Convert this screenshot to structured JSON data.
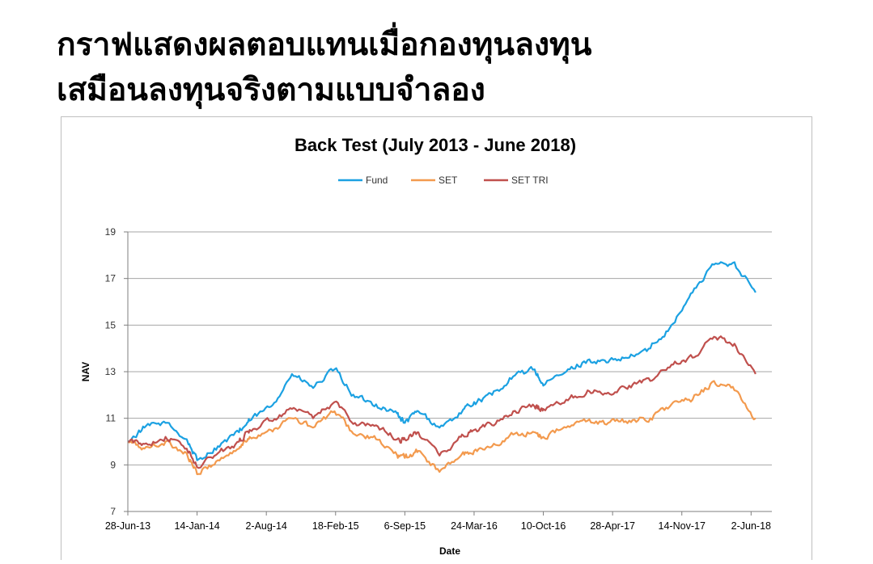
{
  "slide": {
    "title_line1": "กราฟแสดงผลตอบแทนเมื่อกองทุนลงทุน",
    "title_line2": "เสมือนลงทุนจริงตามแบบจำลอง"
  },
  "chart_data": {
    "type": "line",
    "title": "Back Test (July 2013 - June 2018)",
    "xlabel": "Date",
    "ylabel": "NAV",
    "ylim": [
      7,
      19
    ],
    "yticks": [
      7,
      9,
      11,
      13,
      15,
      17,
      19
    ],
    "xticks": [
      "28-Jun-13",
      "14-Jan-14",
      "2-Aug-14",
      "18-Feb-15",
      "6-Sep-15",
      "24-Mar-16",
      "10-Oct-16",
      "28-Apr-17",
      "14-Nov-17",
      "2-Jun-18"
    ],
    "grid": true,
    "legend": "top",
    "x": [
      "2013-06-28",
      "2013-08-15",
      "2013-10-15",
      "2013-12-15",
      "2014-01-14",
      "2014-03-15",
      "2014-05-15",
      "2014-06-15",
      "2014-08-15",
      "2014-10-15",
      "2014-12-15",
      "2015-02-15",
      "2015-04-15",
      "2015-06-15",
      "2015-08-15",
      "2015-09-06",
      "2015-10-15",
      "2015-12-15",
      "2016-02-15",
      "2016-03-24",
      "2016-05-15",
      "2016-07-15",
      "2016-09-15",
      "2016-10-10",
      "2016-12-15",
      "2017-02-15",
      "2017-04-15",
      "2017-06-15",
      "2017-08-15",
      "2017-10-15",
      "2017-12-15",
      "2018-02-15",
      "2018-04-15",
      "2018-06-15"
    ],
    "series": [
      {
        "name": "Fund",
        "color": "#1ba1e2",
        "values": [
          10.0,
          10.6,
          10.8,
          10.1,
          9.2,
          9.8,
          10.4,
          10.9,
          11.5,
          12.9,
          12.3,
          13.1,
          11.9,
          11.6,
          11.2,
          10.8,
          11.3,
          10.6,
          11.2,
          11.7,
          12.0,
          12.8,
          13.1,
          12.4,
          13.0,
          13.5,
          13.4,
          13.6,
          14.0,
          15.0,
          16.4,
          17.6,
          17.7,
          16.4
        ]
      },
      {
        "name": "SET",
        "color": "#f39a4e",
        "values": [
          10.0,
          9.7,
          10.0,
          9.5,
          8.6,
          9.2,
          9.7,
          10.2,
          10.5,
          11.0,
          10.6,
          11.3,
          10.3,
          10.1,
          9.4,
          9.3,
          9.6,
          8.7,
          9.4,
          9.6,
          9.8,
          10.3,
          10.4,
          10.2,
          10.6,
          10.9,
          10.8,
          10.9,
          11.0,
          11.6,
          11.8,
          12.6,
          12.2,
          11.0
        ]
      },
      {
        "name": "SET TRI",
        "color": "#c0504d",
        "values": [
          10.0,
          9.9,
          10.2,
          9.7,
          8.9,
          9.5,
          10.0,
          10.5,
          10.9,
          11.4,
          11.0,
          11.7,
          10.8,
          10.7,
          10.1,
          10.1,
          10.4,
          9.4,
          10.2,
          10.5,
          10.7,
          11.3,
          11.5,
          11.4,
          11.8,
          12.2,
          12.1,
          12.4,
          12.6,
          13.3,
          13.6,
          14.5,
          14.2,
          12.9
        ]
      }
    ]
  }
}
